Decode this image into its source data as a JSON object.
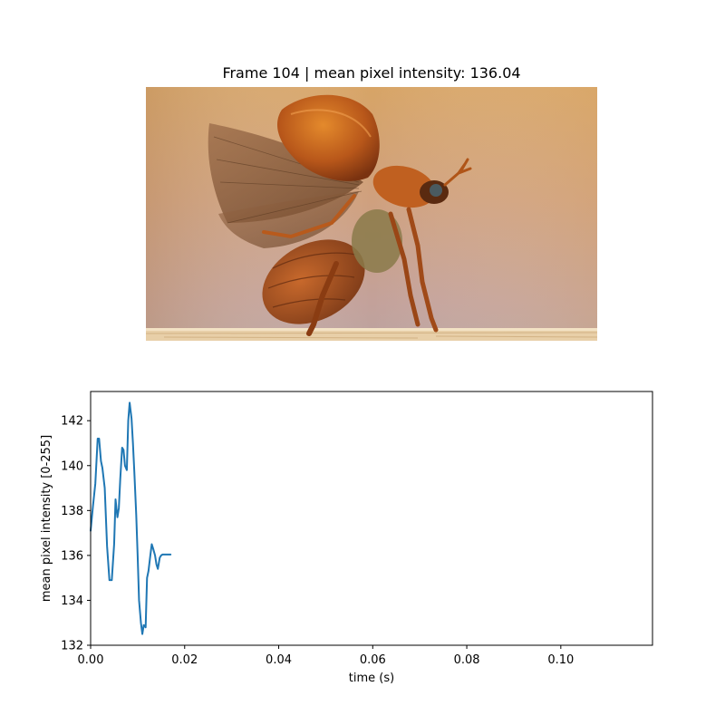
{
  "frame": {
    "title": "Frame 104 | mean pixel intensity: 136.04",
    "image_subject": "beetle-taking-flight"
  },
  "chart_data": {
    "type": "line",
    "title": "",
    "xlabel": "time (s)",
    "ylabel": "mean pixel intensity [0-255]",
    "xlim": [
      0,
      0.1195
    ],
    "ylim": [
      132,
      143.3
    ],
    "xticks": [
      0.0,
      0.02,
      0.04,
      0.06,
      0.08,
      0.1
    ],
    "xtick_labels": [
      "0.00",
      "0.02",
      "0.04",
      "0.06",
      "0.08",
      "0.10"
    ],
    "yticks": [
      132,
      134,
      136,
      138,
      140,
      142
    ],
    "ytick_labels": [
      "132",
      "134",
      "136",
      "138",
      "140",
      "142"
    ],
    "grid": false,
    "line_color": "#1f77b4",
    "series": [
      {
        "x": [
          0.0,
          0.0005,
          0.001,
          0.0015,
          0.0018,
          0.0022,
          0.0025,
          0.003,
          0.0035,
          0.004,
          0.0045,
          0.005,
          0.0053,
          0.0057,
          0.006,
          0.0063,
          0.0067,
          0.007,
          0.0073,
          0.0077,
          0.008,
          0.0083,
          0.0087,
          0.009,
          0.0093,
          0.0097,
          0.01,
          0.0103,
          0.0107,
          0.011,
          0.0113,
          0.0117,
          0.012,
          0.0123,
          0.0127,
          0.013,
          0.0133,
          0.0137,
          0.014,
          0.0143,
          0.0147,
          0.015,
          0.0153,
          0.0157,
          0.016,
          0.0163,
          0.0167,
          0.017
        ],
        "y": [
          137.1,
          138.2,
          139.2,
          141.2,
          141.2,
          140.2,
          139.9,
          139.0,
          136.4,
          134.9,
          134.9,
          136.5,
          138.5,
          137.7,
          138.1,
          139.4,
          140.8,
          140.7,
          140.0,
          139.8,
          142.0,
          142.8,
          142.1,
          141.0,
          139.7,
          137.8,
          136.0,
          134.0,
          133.0,
          132.5,
          132.9,
          132.8,
          135.0,
          135.3,
          136.0,
          136.5,
          136.3,
          136.0,
          135.6,
          135.4,
          135.9,
          136.0,
          136.04,
          136.04,
          136.04,
          136.04,
          136.04,
          136.04
        ]
      }
    ]
  }
}
